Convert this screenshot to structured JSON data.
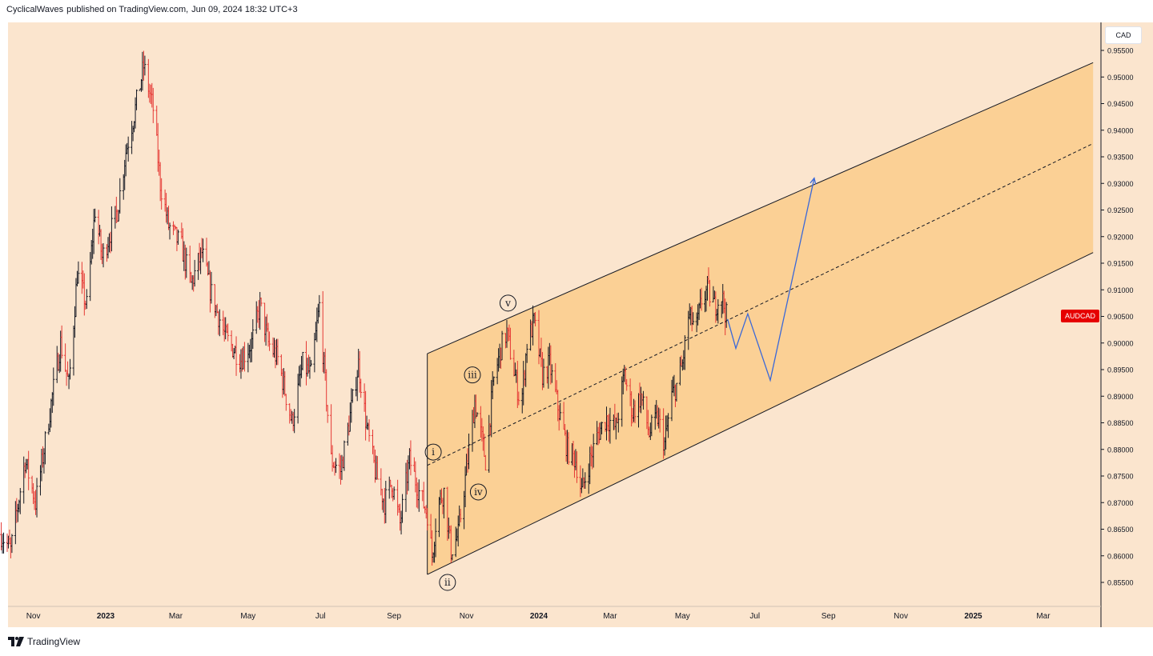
{
  "header": {
    "author": "CyclicalWaves",
    "published_on": "published on TradingView.com,",
    "timestamp": "Jun 09, 2024 18:32 UTC+3"
  },
  "footer": {
    "brand": "TradingView"
  },
  "currency_label": "CAD",
  "symbol_label": "AUDCAD",
  "colors": {
    "chart_bg": "#fbe5ce",
    "channel_fill": "#fbcd8f",
    "bar_up": "#131722",
    "bar_down": "#e53935",
    "projection": "#3a68d8",
    "price_tag": "#e60000"
  },
  "chart_data": {
    "type": "line",
    "series_style": "ohlc-bars",
    "title": "",
    "xlabel": "",
    "ylabel": "",
    "y_ticks": [
      "0.85500",
      "0.86000",
      "0.86500",
      "0.87000",
      "0.87500",
      "0.88000",
      "0.88500",
      "0.89000",
      "0.89500",
      "0.90000",
      "0.90500",
      "0.91000",
      "0.91500",
      "0.92000",
      "0.92500",
      "0.93000",
      "0.93500",
      "0.94000",
      "0.94500",
      "0.95000",
      "0.95500"
    ],
    "ylim": [
      0.8525,
      0.957
    ],
    "x_ticks": [
      {
        "label": "Nov",
        "date": "2022-11-01",
        "bold": false
      },
      {
        "label": "2023",
        "date": "2023-01-01",
        "bold": true
      },
      {
        "label": "Mar",
        "date": "2023-03-01",
        "bold": false
      },
      {
        "label": "May",
        "date": "2023-05-01",
        "bold": false
      },
      {
        "label": "Jul",
        "date": "2023-07-01",
        "bold": false
      },
      {
        "label": "Sep",
        "date": "2023-09-01",
        "bold": false
      },
      {
        "label": "Nov",
        "date": "2023-11-01",
        "bold": false
      },
      {
        "label": "2024",
        "date": "2024-01-01",
        "bold": true
      },
      {
        "label": "Mar",
        "date": "2024-03-01",
        "bold": false
      },
      {
        "label": "May",
        "date": "2024-05-01",
        "bold": false
      },
      {
        "label": "Jul",
        "date": "2024-07-01",
        "bold": false
      },
      {
        "label": "Sep",
        "date": "2024-09-01",
        "bold": false
      },
      {
        "label": "Nov",
        "date": "2024-11-01",
        "bold": false
      },
      {
        "label": "2025",
        "date": "2025-01-01",
        "bold": true
      },
      {
        "label": "Mar",
        "date": "2025-03-01",
        "bold": false
      }
    ],
    "price_path": [
      [
        "2022-10-05",
        0.864
      ],
      [
        "2022-10-13",
        0.861
      ],
      [
        "2022-10-25",
        0.878
      ],
      [
        "2022-11-03",
        0.87
      ],
      [
        "2022-11-17",
        0.89
      ],
      [
        "2022-11-24",
        0.9
      ],
      [
        "2022-12-01",
        0.892
      ],
      [
        "2022-12-08",
        0.913
      ],
      [
        "2022-12-16",
        0.907
      ],
      [
        "2022-12-23",
        0.925
      ],
      [
        "2022-12-29",
        0.916
      ],
      [
        "2023-01-11",
        0.925
      ],
      [
        "2023-01-18",
        0.936
      ],
      [
        "2023-01-25",
        0.943
      ],
      [
        "2023-02-02",
        0.952
      ],
      [
        "2023-02-10",
        0.944
      ],
      [
        "2023-02-16",
        0.93
      ],
      [
        "2023-02-23",
        0.922
      ],
      [
        "2023-03-06",
        0.918
      ],
      [
        "2023-03-14",
        0.911
      ],
      [
        "2023-03-23",
        0.917
      ],
      [
        "2023-03-30",
        0.91
      ],
      [
        "2023-04-12",
        0.901
      ],
      [
        "2023-04-25",
        0.897
      ],
      [
        "2023-05-04",
        0.9
      ],
      [
        "2023-05-11",
        0.907
      ],
      [
        "2023-05-18",
        0.9
      ],
      [
        "2023-05-26",
        0.897
      ],
      [
        "2023-06-02",
        0.89
      ],
      [
        "2023-06-07",
        0.885
      ],
      [
        "2023-06-16",
        0.896
      ],
      [
        "2023-06-23",
        0.894
      ],
      [
        "2023-06-30",
        0.907
      ],
      [
        "2023-07-10",
        0.878
      ],
      [
        "2023-07-18",
        0.876
      ],
      [
        "2023-07-25",
        0.885
      ],
      [
        "2023-08-02",
        0.896
      ],
      [
        "2023-08-09",
        0.884
      ],
      [
        "2023-08-16",
        0.876
      ],
      [
        "2023-08-24",
        0.87
      ],
      [
        "2023-08-30",
        0.874
      ],
      [
        "2023-09-06",
        0.866
      ],
      [
        "2023-09-14",
        0.878
      ],
      [
        "2023-09-22",
        0.872
      ],
      [
        "2023-09-29",
        0.868
      ],
      [
        "2023-10-03",
        0.86
      ],
      [
        "2023-10-08",
        0.87
      ],
      [
        "2023-10-13",
        0.872
      ],
      [
        "2023-10-19",
        0.861
      ],
      [
        "2023-10-25",
        0.864
      ],
      [
        "2023-11-02",
        0.878
      ],
      [
        "2023-11-08",
        0.889
      ],
      [
        "2023-11-13",
        0.883
      ],
      [
        "2023-11-17",
        0.878
      ],
      [
        "2023-11-24",
        0.893
      ],
      [
        "2023-11-30",
        0.899
      ],
      [
        "2023-12-05",
        0.902
      ],
      [
        "2023-12-10",
        0.896
      ],
      [
        "2023-12-17",
        0.888
      ],
      [
        "2023-12-22",
        0.9
      ],
      [
        "2023-12-28",
        0.904
      ],
      [
        "2024-01-04",
        0.894
      ],
      [
        "2024-01-10",
        0.896
      ],
      [
        "2024-01-17",
        0.888
      ],
      [
        "2024-01-25",
        0.88
      ],
      [
        "2024-02-01",
        0.878
      ],
      [
        "2024-02-06",
        0.872
      ],
      [
        "2024-02-13",
        0.878
      ],
      [
        "2024-02-20",
        0.883
      ],
      [
        "2024-02-27",
        0.886
      ],
      [
        "2024-03-06",
        0.884
      ],
      [
        "2024-03-13",
        0.894
      ],
      [
        "2024-03-20",
        0.887
      ],
      [
        "2024-03-27",
        0.89
      ],
      [
        "2024-04-03",
        0.883
      ],
      [
        "2024-04-10",
        0.886
      ],
      [
        "2024-04-16",
        0.881
      ],
      [
        "2024-04-22",
        0.89
      ],
      [
        "2024-04-26",
        0.892
      ],
      [
        "2024-05-01",
        0.896
      ],
      [
        "2024-05-06",
        0.905
      ],
      [
        "2024-05-13",
        0.903
      ],
      [
        "2024-05-17",
        0.908
      ],
      [
        "2024-05-22",
        0.91
      ],
      [
        "2024-05-28",
        0.907
      ],
      [
        "2024-06-03",
        0.909
      ],
      [
        "2024-06-07",
        0.905
      ]
    ],
    "channel": {
      "upper": [
        [
          "2023-09-29",
          0.898
        ],
        [
          "2025-04-12",
          0.9527
        ]
      ],
      "median": [
        [
          "2023-09-29",
          0.877
        ],
        [
          "2025-04-12",
          0.9375
        ]
      ],
      "lower": [
        [
          "2023-09-29",
          0.8565
        ],
        [
          "2025-04-12",
          0.917
        ]
      ]
    },
    "projection": [
      [
        "2024-06-08",
        0.9045
      ],
      [
        "2024-06-15",
        0.899
      ],
      [
        "2024-06-25",
        0.9055
      ],
      [
        "2024-07-14",
        0.893
      ],
      [
        "2024-08-20",
        0.931
      ]
    ],
    "wave_labels": [
      {
        "text": "i",
        "date": "2023-10-04",
        "value": 0.8795
      },
      {
        "text": "ii",
        "date": "2023-10-16",
        "value": 0.855
      },
      {
        "text": "iii",
        "date": "2023-11-06",
        "value": 0.894
      },
      {
        "text": "iv",
        "date": "2023-11-11",
        "value": 0.872
      },
      {
        "text": "v",
        "date": "2023-12-06",
        "value": 0.9075
      }
    ],
    "last_price": "0.90500"
  }
}
